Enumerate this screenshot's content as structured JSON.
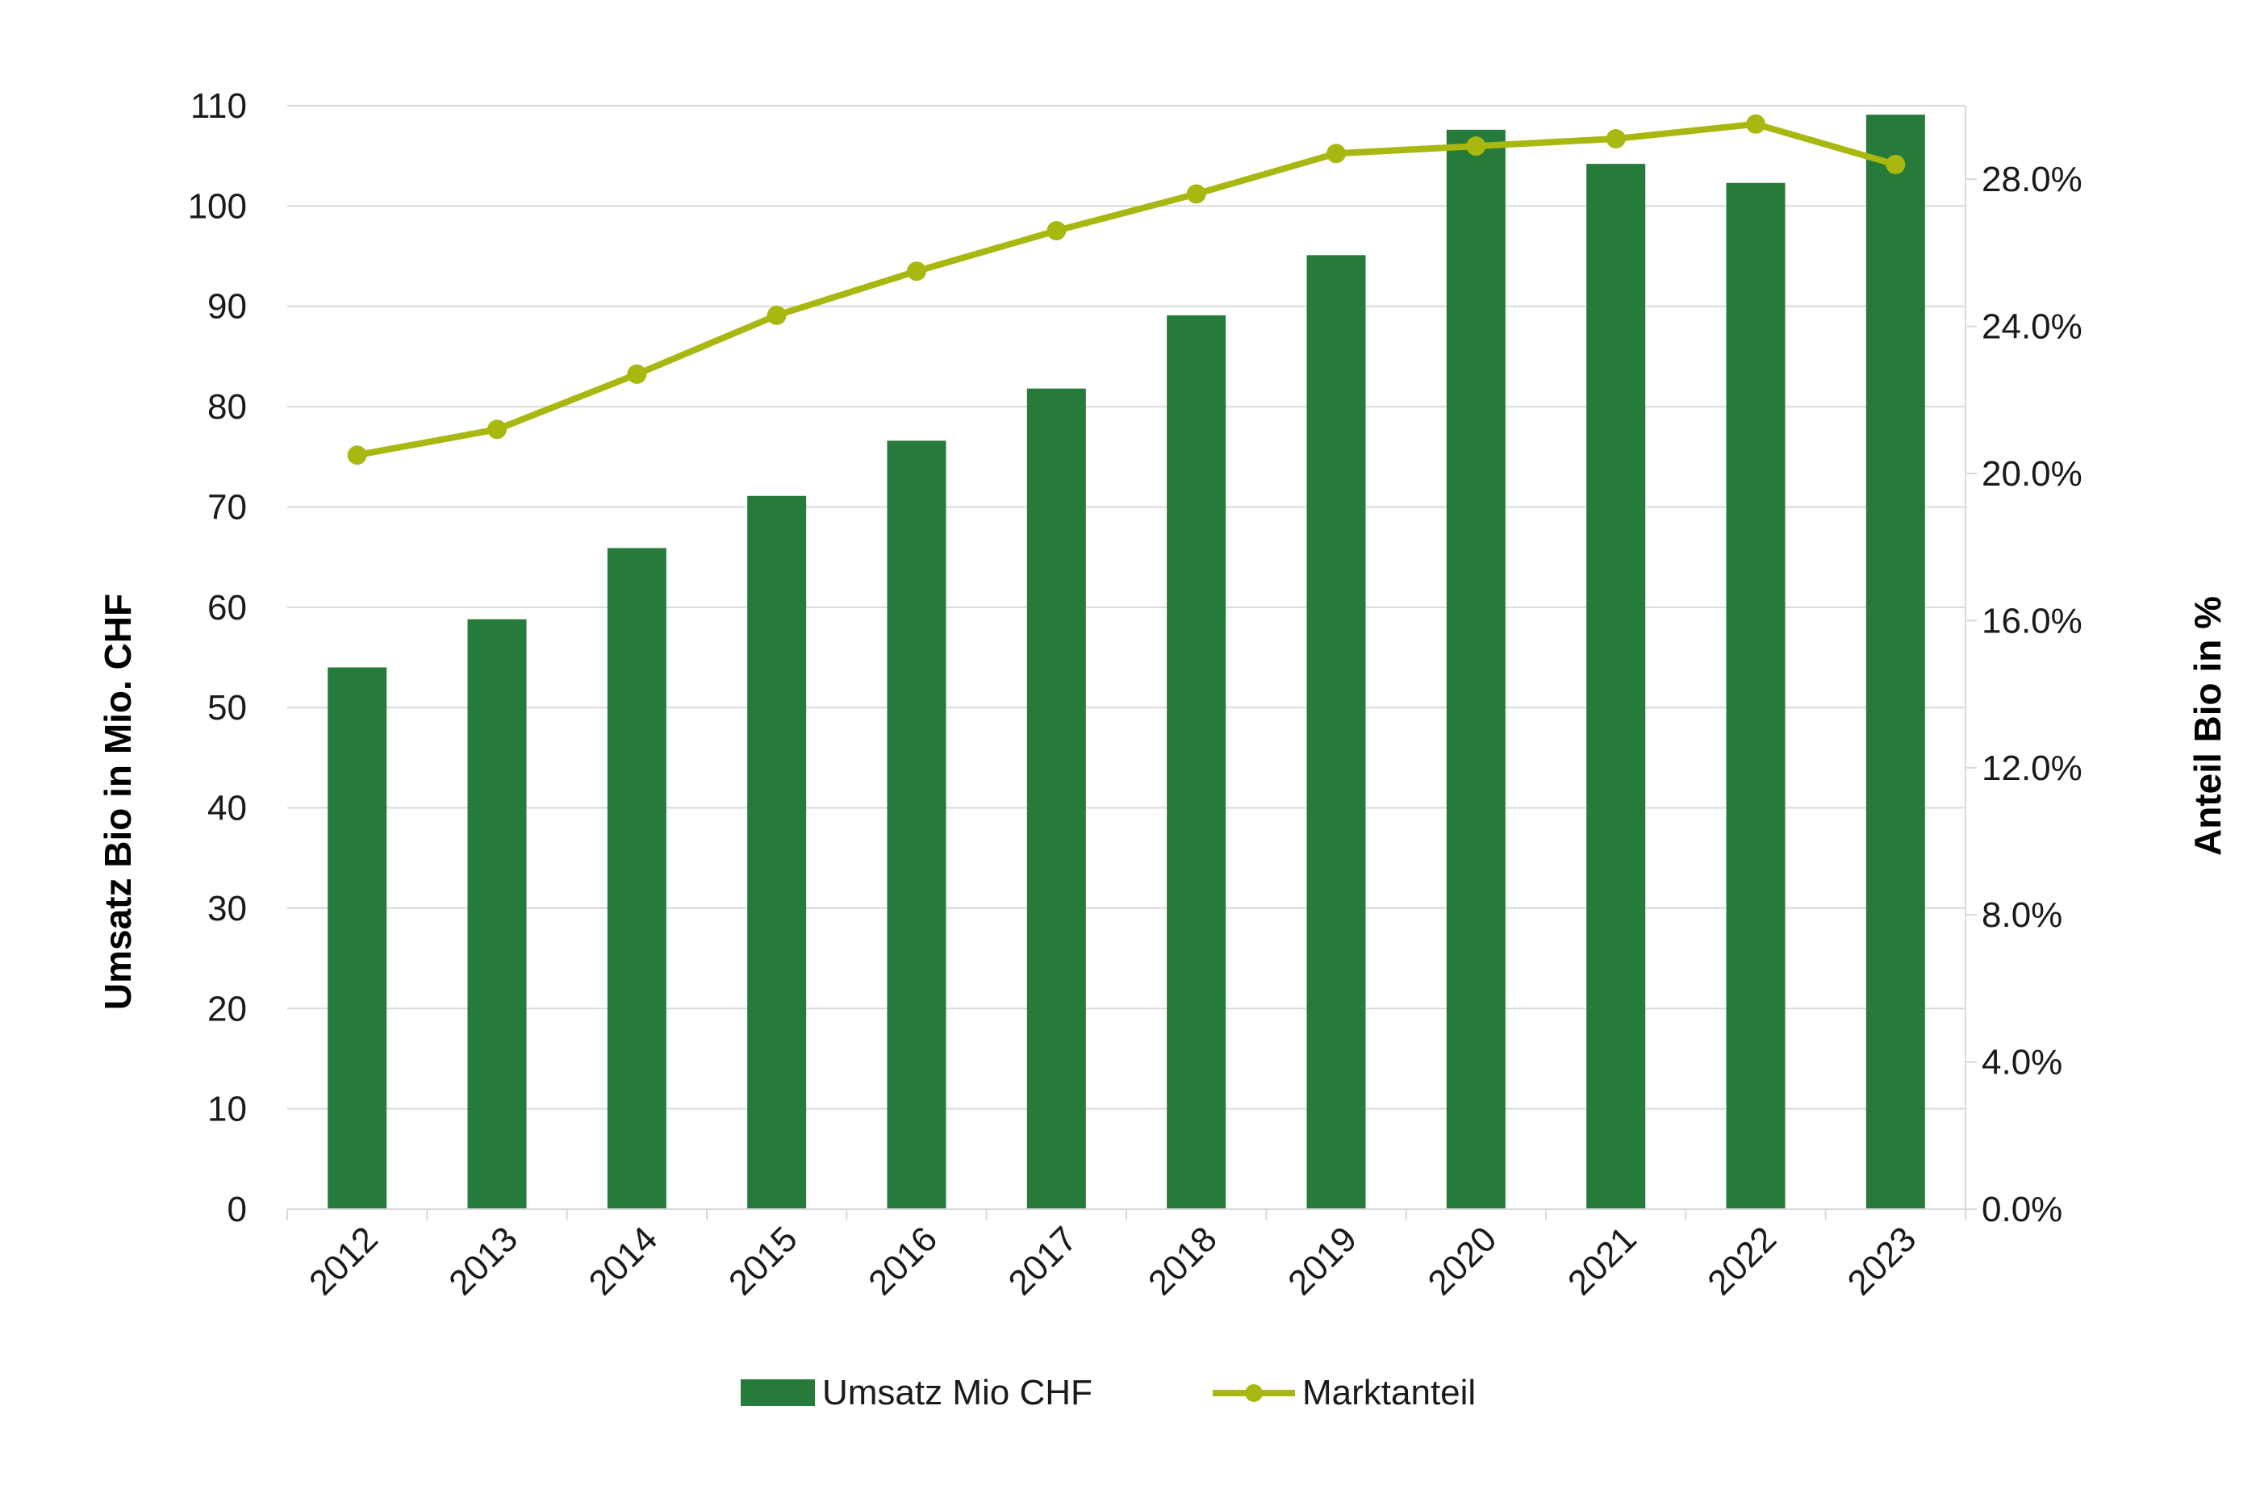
{
  "chart_data": {
    "type": "bar",
    "categories": [
      "2012",
      "2013",
      "2014",
      "2015",
      "2016",
      "2017",
      "2018",
      "2019",
      "2020",
      "2021",
      "2022",
      "2023"
    ],
    "series": [
      {
        "name": "Umsatz Mio CHF",
        "type": "bar",
        "axis": "left",
        "color": "#277b3a",
        "values": [
          54.0,
          58.8,
          65.9,
          71.1,
          76.6,
          81.8,
          89.1,
          95.1,
          107.6,
          104.2,
          102.3,
          109.1
        ]
      },
      {
        "name": "Marktanteil",
        "type": "line",
        "axis": "right",
        "color": "#a8b810",
        "values": [
          20.5,
          21.2,
          22.7,
          24.3,
          25.5,
          26.6,
          27.6,
          28.7,
          28.9,
          29.1,
          29.5,
          28.4
        ]
      }
    ],
    "ylabel": "Umsatz Bio in Mio. CHF",
    "y2label": "Anteil Bio in %",
    "xlabel": "",
    "ylim": [
      0,
      110
    ],
    "y2lim": [
      0,
      30
    ],
    "yticks": [
      "0",
      "10",
      "20",
      "30",
      "40",
      "50",
      "60",
      "70",
      "80",
      "90",
      "100",
      "110"
    ],
    "y2ticks": [
      "0.0%",
      "4.0%",
      "8.0%",
      "12.0%",
      "16.0%",
      "20.0%",
      "24.0%",
      "28.0%"
    ],
    "grid": true,
    "legend_position": "bottom"
  }
}
